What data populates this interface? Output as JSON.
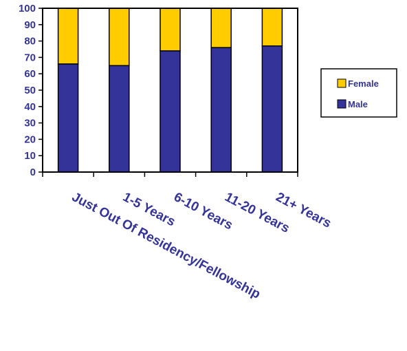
{
  "chart_data": {
    "type": "bar",
    "stacked": true,
    "categories": [
      "Just Out Of Residency/Fellowship",
      "1-5 Years",
      "6-10 Years",
      "11-20 Years",
      "21+ Years"
    ],
    "series": [
      {
        "name": "Male",
        "values": [
          66,
          65,
          74,
          76,
          77
        ],
        "color": "#333399"
      },
      {
        "name": "Female",
        "values": [
          34,
          35,
          26,
          24,
          23
        ],
        "color": "#FFCC00"
      }
    ],
    "yticks": [
      "0",
      "10",
      "20",
      "30",
      "40",
      "50",
      "60",
      "70",
      "80",
      "90",
      "100"
    ],
    "ylim": [
      0,
      100
    ],
    "grid": false,
    "legend": {
      "position": "right",
      "entries": [
        "Female",
        "Male"
      ]
    }
  }
}
